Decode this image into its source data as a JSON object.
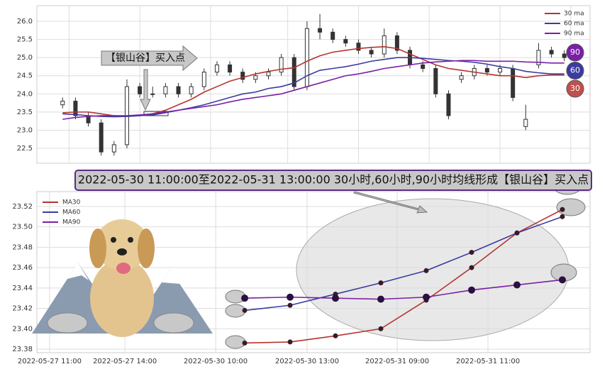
{
  "chart_data": [
    {
      "type": "candlestick",
      "ylim": [
        22.09,
        26.43
      ],
      "yticks": [
        {
          "value": 22.5,
          "label": "22.5"
        },
        {
          "value": 23,
          "label": "23.0"
        },
        {
          "value": 23.5,
          "label": "23.5"
        },
        {
          "value": 24,
          "label": "24.0"
        },
        {
          "value": 24.5,
          "label": "24.5"
        },
        {
          "value": 25,
          "label": "25.0"
        },
        {
          "value": 25.5,
          "label": "25.5"
        },
        {
          "value": 26,
          "label": "26.0"
        }
      ],
      "xlim": [
        -2,
        41
      ],
      "xticks": [
        0.5,
        6,
        11.5,
        17.5,
        23,
        28.5,
        34,
        39.5
      ],
      "grid": true,
      "open": [
        23.7,
        23.8,
        23.4,
        23.2,
        22.4,
        22.6,
        24.2,
        24.0,
        24.0,
        24.2,
        24.0,
        24.2,
        24.6,
        24.8,
        24.6,
        24.4,
        24.5,
        24.6,
        25.0,
        24.2,
        25.8,
        25.7,
        25.5,
        25.4,
        25.2,
        25.1,
        25.6,
        25.2,
        24.8,
        24.7,
        24.0,
        24.4,
        24.5,
        24.7,
        24.6,
        24.7,
        23.1,
        24.8,
        25.2,
        25.1
      ],
      "high": [
        23.9,
        23.9,
        23.5,
        23.3,
        22.7,
        24.4,
        24.3,
        24.2,
        24.3,
        24.3,
        24.3,
        24.7,
        24.9,
        24.9,
        24.7,
        24.6,
        24.7,
        25.1,
        25.1,
        26.0,
        26.2,
        25.8,
        25.6,
        25.5,
        25.3,
        25.8,
        25.7,
        25.3,
        24.9,
        24.8,
        24.1,
        24.6,
        24.8,
        24.8,
        24.8,
        24.8,
        23.7,
        25.4,
        25.3,
        25.2
      ],
      "low": [
        23.6,
        23.3,
        23.1,
        22.3,
        22.3,
        22.5,
        23.9,
        23.9,
        23.9,
        23.9,
        23.9,
        24.1,
        24.5,
        24.5,
        24.3,
        24.3,
        24.4,
        24.5,
        24.1,
        24.1,
        25.5,
        25.4,
        25.3,
        25.1,
        25.0,
        25.0,
        25.1,
        24.7,
        24.6,
        23.9,
        23.3,
        24.3,
        24.4,
        24.5,
        24.5,
        23.8,
        23.0,
        24.7,
        25.0,
        24.9
      ],
      "close": [
        23.8,
        23.4,
        23.2,
        22.4,
        22.6,
        24.2,
        24.0,
        24.0,
        24.2,
        24.0,
        24.2,
        24.6,
        24.8,
        24.6,
        24.4,
        24.5,
        24.6,
        25.0,
        24.2,
        25.8,
        25.7,
        25.5,
        25.4,
        25.2,
        25.1,
        25.6,
        25.2,
        24.8,
        24.7,
        24.0,
        23.4,
        24.5,
        24.7,
        24.6,
        24.7,
        23.9,
        23.3,
        25.2,
        25.1,
        25.0
      ],
      "series": [
        {
          "name": "30 ma",
          "color": "#b5342f",
          "values": [
            23.48,
            23.5,
            23.5,
            23.45,
            23.4,
            23.38,
            23.4,
            23.45,
            23.55,
            23.7,
            23.85,
            24.05,
            24.2,
            24.35,
            24.45,
            24.55,
            24.62,
            24.68,
            24.72,
            24.9,
            25.05,
            25.15,
            25.2,
            25.25,
            25.28,
            25.3,
            25.25,
            25.1,
            24.95,
            24.8,
            24.7,
            24.65,
            24.6,
            24.55,
            24.5,
            24.5,
            24.45,
            24.5,
            24.52,
            24.52
          ]
        },
        {
          "name": "60 ma",
          "color": "#3b3ba0",
          "values": [
            23.45,
            23.43,
            23.4,
            23.38,
            23.37,
            23.38,
            23.4,
            23.42,
            23.48,
            23.55,
            23.62,
            23.7,
            23.8,
            23.9,
            24.0,
            24.05,
            24.15,
            24.2,
            24.3,
            24.5,
            24.65,
            24.7,
            24.75,
            24.82,
            24.9,
            24.95,
            25.0,
            25.0,
            24.98,
            24.95,
            24.92,
            24.9,
            24.87,
            24.82,
            24.75,
            24.7,
            24.62,
            24.58,
            24.55,
            24.55
          ]
        },
        {
          "name": "90 ma",
          "color": "#7a1fa8",
          "values": [
            23.3,
            23.35,
            23.38,
            23.4,
            23.4,
            23.4,
            23.42,
            23.45,
            23.5,
            23.55,
            23.6,
            23.65,
            23.7,
            23.78,
            23.85,
            23.9,
            23.95,
            24.0,
            24.1,
            24.2,
            24.3,
            24.4,
            24.5,
            24.55,
            24.62,
            24.7,
            24.75,
            24.8,
            24.85,
            24.88,
            24.9,
            24.92,
            24.92,
            24.9,
            24.9,
            24.9,
            24.88,
            24.87,
            24.85,
            24.85
          ]
        }
      ],
      "annotation": "【银山谷】买入点",
      "badges": [
        {
          "label": "90",
          "color": "#7a1fa8"
        },
        {
          "label": "60",
          "color": "#3b3ba0"
        },
        {
          "label": "30",
          "color": "#c0504d"
        }
      ]
    },
    {
      "type": "line",
      "banner": "2022-05-30 11:00:00至2022-05-31 13:00:00 30小时,60小时,90小时均线形成【银山谷】买入点",
      "x": [
        0,
        1,
        2,
        3,
        4,
        5,
        6,
        7
      ],
      "xlim": [
        -4.58,
        7.61
      ],
      "xticks": [
        {
          "value": -4.3,
          "label": "2022-05-27 11:00"
        },
        {
          "value": -2.64,
          "label": "2022-05-27 14:00"
        },
        {
          "value": -0.64,
          "label": "2022-05-30 10:00"
        },
        {
          "value": 1.375,
          "label": "2022-05-30 13:00"
        },
        {
          "value": 3.36,
          "label": "2022-05-31 09:00"
        },
        {
          "value": 5.36,
          "label": "2022-05-31 11:00"
        }
      ],
      "ylim": [
        23.3765,
        23.5346
      ],
      "yticks": [
        {
          "value": 23.38,
          "label": "23.38"
        },
        {
          "value": 23.4,
          "label": "23.40"
        },
        23.42,
        23.44,
        23.46,
        23.48,
        {
          "value": 23.5,
          "label": "23.50"
        },
        23.52
      ],
      "grid": true,
      "series": [
        {
          "name": "MA30",
          "color": "#b5342f",
          "values": [
            23.386,
            23.387,
            23.393,
            23.4,
            23.428,
            23.46,
            23.494,
            23.517
          ]
        },
        {
          "name": "MA60",
          "color": "#3b3ba0",
          "values": [
            23.418,
            23.423,
            23.434,
            23.445,
            23.457,
            23.475,
            23.494,
            23.51
          ]
        },
        {
          "name": "MA90",
          "color": "#7a1fa8",
          "values": [
            23.43,
            23.431,
            23.43,
            23.429,
            23.431,
            23.438,
            23.443,
            23.448
          ]
        }
      ]
    }
  ]
}
